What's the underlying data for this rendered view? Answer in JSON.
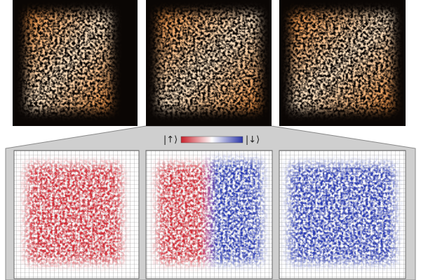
{
  "colorbar": {
    "left_label": "|↑⟩",
    "right_label": "|↓⟩"
  }
}
